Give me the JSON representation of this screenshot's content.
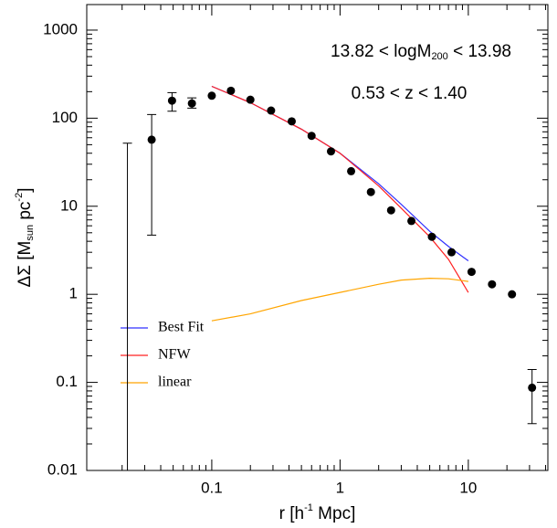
{
  "chart_data": {
    "type": "scatter",
    "xlog": true,
    "ylog": true,
    "xlim": [
      0.0106,
      41.7
    ],
    "ylim": [
      0.01,
      1950
    ],
    "xticks": [
      0.1,
      1,
      10
    ],
    "yticks": [
      0.01,
      0.1,
      1,
      10,
      100,
      1000
    ],
    "xlabel": [
      "r  [h",
      "-1",
      " Mpc]"
    ],
    "ylabel": [
      "ΔΣ  [M",
      "sun",
      "  pc",
      "-2",
      "]"
    ],
    "annotations": [
      [
        "13.82 < logM",
        "200",
        " < 13.98"
      ],
      [
        "0.53 < z < 1.40"
      ]
    ],
    "points": {
      "color": "#000000",
      "x": [
        0.022,
        0.034,
        0.049,
        0.07,
        0.1,
        0.141,
        0.2,
        0.29,
        0.42,
        0.6,
        0.85,
        1.22,
        1.74,
        2.5,
        3.6,
        5.2,
        7.4,
        10.6,
        15.3,
        21.9,
        31.4
      ],
      "values": [
        null,
        57,
        158,
        147,
        180,
        205,
        162,
        122,
        92,
        63,
        42,
        25,
        14.5,
        9,
        6.8,
        4.5,
        3.0,
        1.8,
        1.3,
        1.0,
        0.087
      ],
      "err_low": [
        0.01,
        4.7,
        120,
        130,
        null,
        null,
        null,
        null,
        null,
        null,
        null,
        null,
        null,
        null,
        null,
        null,
        null,
        null,
        null,
        null,
        0.034
      ],
      "err_high": [
        52,
        110,
        195,
        170,
        null,
        null,
        null,
        null,
        null,
        null,
        null,
        null,
        null,
        null,
        null,
        null,
        null,
        null,
        null,
        null,
        0.14
      ]
    },
    "series": [
      {
        "name": "Best Fit",
        "color": "#3030ff",
        "x": [
          0.1,
          0.2,
          0.5,
          1,
          2,
          3,
          5,
          7,
          10
        ],
        "values": [
          230,
          150,
          75,
          40,
          18,
          10.5,
          5.2,
          3.5,
          2.4
        ]
      },
      {
        "name": "NFW",
        "color": "#ff2020",
        "x": [
          0.1,
          0.2,
          0.5,
          1,
          2,
          3,
          5,
          7,
          10
        ],
        "values": [
          230,
          150,
          75,
          40,
          17,
          9.5,
          4.5,
          2.5,
          1.05
        ]
      },
      {
        "name": "linear",
        "color": "#ffa500",
        "x": [
          0.1,
          0.2,
          0.5,
          1,
          2,
          3,
          5,
          7,
          10
        ],
        "values": [
          0.5,
          0.6,
          0.85,
          1.05,
          1.3,
          1.45,
          1.52,
          1.5,
          1.4
        ]
      }
    ]
  }
}
